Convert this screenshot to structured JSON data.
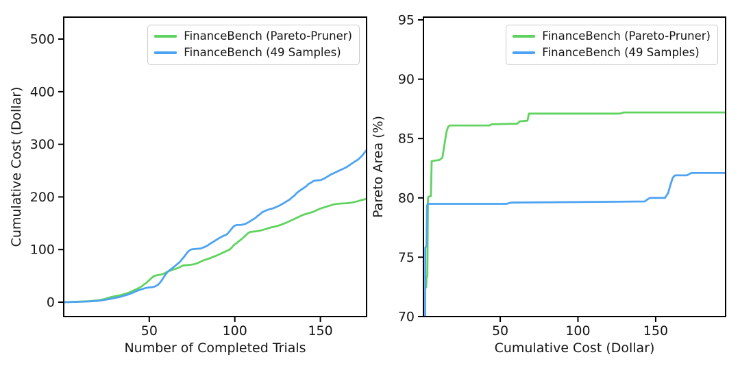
{
  "figure": {
    "background": "#ffffff"
  },
  "colors": {
    "green": "#5fd35f",
    "blue": "#4da3f2",
    "axis": "#000000",
    "tick_label": "#151515"
  },
  "chart_data": [
    {
      "id": "left-chart",
      "type": "line",
      "title": "",
      "xlabel": "Number of Completed Trials",
      "ylabel": "Cumulative Cost (Dollar)",
      "xlim": [
        0,
        177
      ],
      "ylim": [
        -27.3,
        541.7
      ],
      "xticks": [
        50,
        100,
        150
      ],
      "yticks": [
        0,
        100,
        200,
        300,
        400,
        500
      ],
      "grid": false,
      "legend_position": "upper right",
      "series": [
        {
          "name": "FinanceBench (Pareto-Pruner)",
          "color": "#5fd35f",
          "points": [
            [
              0.5,
              0
            ],
            [
              8,
              1
            ],
            [
              15,
              2
            ],
            [
              21,
              4
            ],
            [
              24,
              6
            ],
            [
              26,
              8
            ],
            [
              28,
              10
            ],
            [
              31,
              12
            ],
            [
              33,
              13
            ],
            [
              36,
              16
            ],
            [
              38,
              18
            ],
            [
              40,
              21
            ],
            [
              42,
              24
            ],
            [
              44,
              27
            ],
            [
              46,
              31
            ],
            [
              47,
              34
            ],
            [
              48,
              36
            ],
            [
              49,
              39
            ],
            [
              50,
              42
            ],
            [
              51,
              45
            ],
            [
              52,
              48
            ],
            [
              53,
              50
            ],
            [
              55,
              51.5
            ],
            [
              57,
              52.5
            ],
            [
              58,
              53.5
            ],
            [
              59,
              55
            ],
            [
              60,
              57
            ],
            [
              61,
              58.5
            ],
            [
              62,
              59.5
            ],
            [
              63,
              61
            ],
            [
              64,
              62
            ],
            [
              66,
              64
            ],
            [
              67,
              65.5
            ],
            [
              68,
              67
            ],
            [
              69,
              68.5
            ],
            [
              70,
              70
            ],
            [
              74,
              71
            ],
            [
              76,
              72
            ],
            [
              78,
              74
            ],
            [
              80,
              77
            ],
            [
              82,
              80
            ],
            [
              84,
              82
            ],
            [
              86,
              84
            ],
            [
              87,
              86
            ],
            [
              89,
              88
            ],
            [
              91,
              91
            ],
            [
              93,
              94
            ],
            [
              95,
              97
            ],
            [
              97,
              100
            ],
            [
              98,
              103
            ],
            [
              99,
              107
            ],
            [
              100,
              110
            ],
            [
              101,
              112
            ],
            [
              102,
              115
            ],
            [
              104,
              120
            ],
            [
              105,
              123
            ],
            [
              106,
              126
            ],
            [
              107,
              129
            ],
            [
              108,
              132
            ],
            [
              109,
              133.5
            ],
            [
              112,
              134.5
            ],
            [
              114,
              135.5
            ],
            [
              116,
              137
            ],
            [
              118,
              139
            ],
            [
              121,
              142
            ],
            [
              124,
              144
            ],
            [
              127,
              147
            ],
            [
              130,
              151
            ],
            [
              132,
              154
            ],
            [
              134,
              157
            ],
            [
              136,
              160
            ],
            [
              138,
              163
            ],
            [
              140,
              166
            ],
            [
              142,
              168
            ],
            [
              144,
              170
            ],
            [
              146,
              172
            ],
            [
              148,
              175
            ],
            [
              150,
              178
            ],
            [
              152,
              180
            ],
            [
              154,
              182
            ],
            [
              156,
              184
            ],
            [
              158,
              186
            ],
            [
              160,
              187
            ],
            [
              165,
              188
            ],
            [
              168,
              189
            ],
            [
              170,
              190.5
            ],
            [
              172,
              192
            ],
            [
              174,
              194
            ],
            [
              176,
              195.5
            ],
            [
              177,
              197
            ]
          ]
        },
        {
          "name": "FinanceBench (49 Samples)",
          "color": "#4da3f2",
          "points": [
            [
              0.5,
              0
            ],
            [
              8,
              0.7
            ],
            [
              15,
              1.5
            ],
            [
              20,
              2.5
            ],
            [
              23,
              4
            ],
            [
              26,
              5.5
            ],
            [
              29,
              7.5
            ],
            [
              32,
              9.5
            ],
            [
              34,
              11
            ],
            [
              36,
              13
            ],
            [
              38,
              15
            ],
            [
              40,
              17.5
            ],
            [
              42,
              20.5
            ],
            [
              44,
              23
            ],
            [
              46,
              25
            ],
            [
              48,
              27
            ],
            [
              50,
              28
            ],
            [
              52,
              28.7
            ],
            [
              53,
              29.5
            ],
            [
              54,
              31
            ],
            [
              55,
              33
            ],
            [
              56,
              36
            ],
            [
              57,
              40
            ],
            [
              58,
              45
            ],
            [
              59,
              50
            ],
            [
              60,
              54.5
            ],
            [
              61,
              58.5
            ],
            [
              62,
              61
            ],
            [
              63,
              63.5
            ],
            [
              64,
              66
            ],
            [
              65,
              68.5
            ],
            [
              66,
              71.5
            ],
            [
              67,
              74
            ],
            [
              68,
              77
            ],
            [
              69,
              81
            ],
            [
              70,
              85
            ],
            [
              71,
              89
            ],
            [
              72,
              93.5
            ],
            [
              73,
              97
            ],
            [
              74,
              99.5
            ],
            [
              75,
              100.5
            ],
            [
              76,
              101
            ],
            [
              80,
              102
            ],
            [
              82,
              104.5
            ],
            [
              84,
              107.5
            ],
            [
              85,
              110
            ],
            [
              87,
              114
            ],
            [
              89,
              118
            ],
            [
              91,
              122
            ],
            [
              93,
              125.5
            ],
            [
              95,
              128
            ],
            [
              96,
              131
            ],
            [
              97,
              135
            ],
            [
              98,
              139
            ],
            [
              99,
              143
            ],
            [
              100,
              145.5
            ],
            [
              101,
              146.5
            ],
            [
              104,
              147
            ],
            [
              106,
              148.5
            ],
            [
              108,
              152
            ],
            [
              110,
              156
            ],
            [
              112,
              160
            ],
            [
              113,
              163
            ],
            [
              115,
              168
            ],
            [
              116,
              171
            ],
            [
              118,
              174
            ],
            [
              120,
              176.5
            ],
            [
              122,
              178
            ],
            [
              124,
              180.5
            ],
            [
              126,
              183.5
            ],
            [
              128,
              187
            ],
            [
              130,
              191
            ],
            [
              132,
              195
            ],
            [
              133,
              198
            ],
            [
              135,
              203
            ],
            [
              136,
              207
            ],
            [
              138,
              212
            ],
            [
              140,
              216.5
            ],
            [
              142,
              221
            ],
            [
              143,
              224.5
            ],
            [
              145,
              228
            ],
            [
              146,
              230.5
            ],
            [
              148,
              231.5
            ],
            [
              150,
              232
            ],
            [
              152,
              234.5
            ],
            [
              154,
              238.5
            ],
            [
              156,
              242.5
            ],
            [
              158,
              245.5
            ],
            [
              160,
              248.5
            ],
            [
              162,
              251.5
            ],
            [
              164,
              254.5
            ],
            [
              166,
              258
            ],
            [
              168,
              262.5
            ],
            [
              170,
              267
            ],
            [
              172,
              271
            ],
            [
              173,
              274
            ],
            [
              174,
              277
            ],
            [
              175,
              281
            ],
            [
              176,
              285
            ],
            [
              177,
              289
            ]
          ]
        }
      ]
    },
    {
      "id": "right-chart",
      "type": "line",
      "title": "",
      "xlabel": "Cumulative Cost (Dollar)",
      "ylabel": "Pareto Area (%)",
      "xlim": [
        0.6,
        195
      ],
      "ylim": [
        70,
        95.23
      ],
      "xticks": [
        50,
        100,
        150
      ],
      "yticks": [
        70,
        75,
        80,
        85,
        90,
        95
      ],
      "grid": false,
      "legend_position": "upper right",
      "series": [
        {
          "name": "FinanceBench (Pareto-Pruner)",
          "color": "#5fd35f",
          "points": [
            [
              2.2,
              72.4
            ],
            [
              2.4,
              72.5
            ],
            [
              2.6,
              73.3
            ],
            [
              3.1,
              73.4
            ],
            [
              3.3,
              76.2
            ],
            [
              3.5,
              79.9
            ],
            [
              3.8,
              80.1
            ],
            [
              5.4,
              80.15
            ],
            [
              5.9,
              83.1
            ],
            [
              11,
              83.2
            ],
            [
              12.8,
              83.4
            ],
            [
              14,
              84.4
            ],
            [
              15.5,
              85.6
            ],
            [
              16.5,
              86
            ],
            [
              17.5,
              86.1
            ],
            [
              43,
              86.1
            ],
            [
              44.5,
              86.2
            ],
            [
              61,
              86.25
            ],
            [
              62.5,
              86.45
            ],
            [
              67.5,
              86.5
            ],
            [
              68.5,
              87.1
            ],
            [
              127,
              87.1
            ],
            [
              129.5,
              87.2
            ],
            [
              195,
              87.2
            ]
          ]
        },
        {
          "name": "FinanceBench (49 Samples)",
          "color": "#4da3f2",
          "points": [
            [
              1.7,
              70
            ],
            [
              1.8,
              75.8
            ],
            [
              2.3,
              75.9
            ],
            [
              2.6,
              76.1
            ],
            [
              2.9,
              79.3
            ],
            [
              3.3,
              79.5
            ],
            [
              54,
              79.5
            ],
            [
              57,
              79.6
            ],
            [
              100,
              79.65
            ],
            [
              143,
              79.7
            ],
            [
              145,
              79.9
            ],
            [
              146.5,
              80
            ],
            [
              156,
              80
            ],
            [
              158,
              80.4
            ],
            [
              159.5,
              81.1
            ],
            [
              161,
              81.7
            ],
            [
              162.5,
              81.9
            ],
            [
              170,
              81.9
            ],
            [
              171.5,
              82
            ],
            [
              173,
              82.1
            ],
            [
              195,
              82.1
            ]
          ]
        }
      ]
    }
  ]
}
